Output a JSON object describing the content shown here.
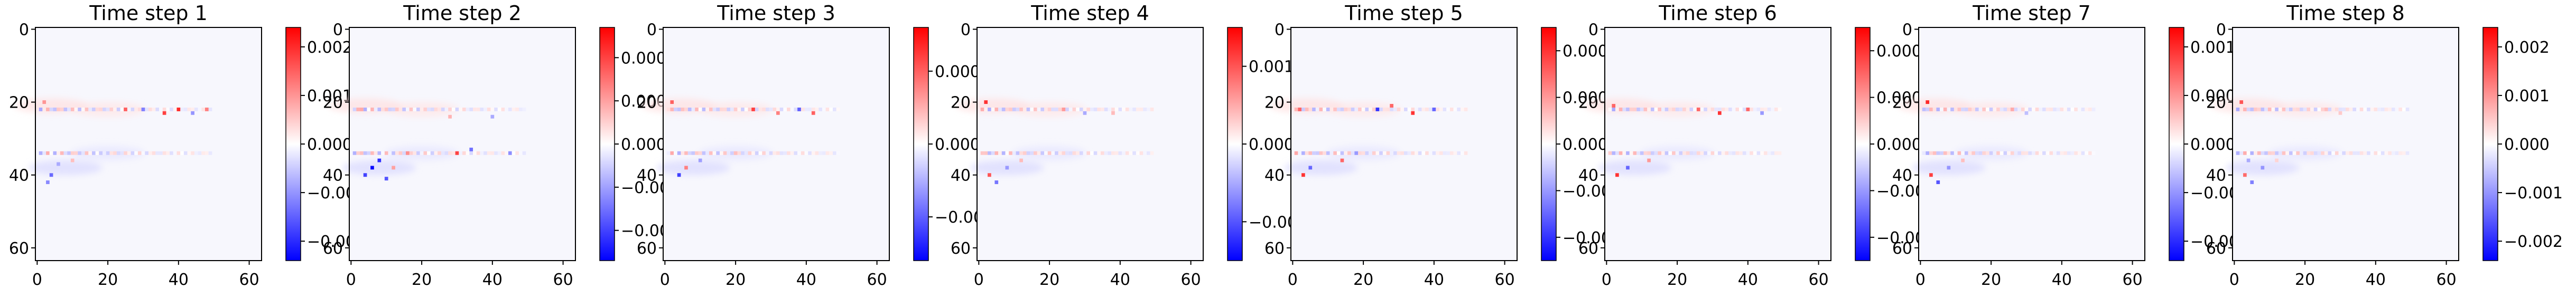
{
  "chart_data": [
    {
      "type": "heatmap",
      "title": "Time step 1",
      "xlabel": "",
      "ylabel": "",
      "xlim": [
        0,
        63
      ],
      "ylim": [
        63,
        0
      ],
      "x_ticks": [
        "0",
        "20",
        "40",
        "60"
      ],
      "y_ticks": [
        "0",
        "20",
        "40",
        "60"
      ],
      "colormap": "bwr",
      "colorbar": {
        "min": -0.0024,
        "max": 0.0024,
        "ticks": [
          0.002,
          0.001,
          0.0,
          -0.001,
          -0.002
        ],
        "tick_labels": [
          "0.002",
          "0.001",
          "0.000",
          "−0.001",
          "−0.002"
        ]
      },
      "features": [
        {
          "x": 25,
          "y": 22,
          "v": 0.0015
        },
        {
          "x": 30,
          "y": 22,
          "v": -0.0012
        },
        {
          "x": 36,
          "y": 23,
          "v": 0.0018
        },
        {
          "x": 40,
          "y": 22,
          "v": 0.002
        },
        {
          "x": 44,
          "y": 23,
          "v": -0.001
        },
        {
          "x": 48,
          "y": 22,
          "v": 0.0012
        },
        {
          "x": 2,
          "y": 20,
          "v": 0.001
        },
        {
          "x": 4,
          "y": 40,
          "v": -0.0014
        },
        {
          "x": 6,
          "y": 37,
          "v": -0.0008
        },
        {
          "x": 10,
          "y": 36,
          "v": 0.0006
        },
        {
          "x": 18,
          "y": 34,
          "v": -0.0005
        },
        {
          "x": 3,
          "y": 42,
          "v": -0.0011
        }
      ]
    },
    {
      "type": "heatmap",
      "title": "Time step 2",
      "xlabel": "",
      "ylabel": "",
      "xlim": [
        0,
        63
      ],
      "ylim": [
        63,
        0
      ],
      "x_ticks": [
        "0",
        "20",
        "40",
        "60"
      ],
      "y_ticks": [
        "0",
        "20",
        "40",
        "60"
      ],
      "colormap": "bwr",
      "colorbar": {
        "min": -0.00027,
        "max": 0.00027,
        "ticks": [
          0.0002,
          0.0001,
          0.0,
          -0.0001,
          -0.0002
        ],
        "tick_labels": [
          "0.0002",
          "0.0001",
          "0.0000",
          "−0.0001",
          "−0.0002"
        ]
      },
      "features": [
        {
          "x": 6,
          "y": 38,
          "v": -0.00026
        },
        {
          "x": 8,
          "y": 36,
          "v": -0.00022
        },
        {
          "x": 4,
          "y": 40,
          "v": -0.0002
        },
        {
          "x": 10,
          "y": 41,
          "v": -0.00018
        },
        {
          "x": 12,
          "y": 38,
          "v": 0.0001
        },
        {
          "x": 30,
          "y": 34,
          "v": 0.0002
        },
        {
          "x": 34,
          "y": 33,
          "v": -0.00015
        },
        {
          "x": 45,
          "y": 34,
          "v": -0.00012
        },
        {
          "x": 28,
          "y": 24,
          "v": 8e-05
        },
        {
          "x": 3,
          "y": 22,
          "v": 9e-05
        },
        {
          "x": 16,
          "y": 34,
          "v": 0.00012
        },
        {
          "x": 40,
          "y": 24,
          "v": -9e-05
        }
      ]
    },
    {
      "type": "heatmap",
      "title": "Time step 3",
      "xlabel": "",
      "ylabel": "",
      "xlim": [
        0,
        63
      ],
      "ylim": [
        63,
        0
      ],
      "x_ticks": [
        "0",
        "20",
        "40",
        "60"
      ],
      "y_ticks": [
        "0",
        "20",
        "40",
        "60"
      ],
      "colormap": "bwr",
      "colorbar": {
        "min": -0.0008,
        "max": 0.0008,
        "ticks": [
          0.0005,
          0.0,
          -0.0005
        ],
        "tick_labels": [
          "0.0005",
          "0.0000",
          "−0.0005"
        ]
      },
      "features": [
        {
          "x": 25,
          "y": 22,
          "v": 0.0006
        },
        {
          "x": 32,
          "y": 23,
          "v": 0.0004
        },
        {
          "x": 38,
          "y": 22,
          "v": -0.0005
        },
        {
          "x": 42,
          "y": 23,
          "v": 0.0005
        },
        {
          "x": 4,
          "y": 40,
          "v": -0.0006
        },
        {
          "x": 6,
          "y": 38,
          "v": 0.0004
        },
        {
          "x": 2,
          "y": 20,
          "v": 0.0005
        },
        {
          "x": 10,
          "y": 36,
          "v": -0.0003
        },
        {
          "x": 20,
          "y": 34,
          "v": 0.0002
        }
      ]
    },
    {
      "type": "heatmap",
      "title": "Time step 4",
      "xlabel": "",
      "ylabel": "",
      "xlim": [
        0,
        63
      ],
      "ylim": [
        63,
        0
      ],
      "x_ticks": [
        "0",
        "20",
        "40",
        "60"
      ],
      "y_ticks": [
        "0",
        "20",
        "40",
        "60"
      ],
      "colormap": "bwr",
      "colorbar": {
        "min": -0.0015,
        "max": 0.0015,
        "ticks": [
          0.001,
          0.0,
          -0.001
        ],
        "tick_labels": [
          "0.001",
          "0.000",
          "−0.001"
        ]
      },
      "features": [
        {
          "x": 2,
          "y": 20,
          "v": 0.0012
        },
        {
          "x": 3,
          "y": 40,
          "v": 0.001
        },
        {
          "x": 5,
          "y": 42,
          "v": -0.0008
        },
        {
          "x": 8,
          "y": 38,
          "v": -0.0006
        },
        {
          "x": 24,
          "y": 22,
          "v": 0.0006
        },
        {
          "x": 30,
          "y": 23,
          "v": -0.0005
        },
        {
          "x": 12,
          "y": 36,
          "v": 0.0004
        },
        {
          "x": 38,
          "y": 23,
          "v": 0.0004
        }
      ]
    },
    {
      "type": "heatmap",
      "title": "Time step 5",
      "xlabel": "",
      "ylabel": "",
      "xlim": [
        0,
        63
      ],
      "ylim": [
        63,
        0
      ],
      "x_ticks": [
        "0",
        "20",
        "40",
        "60"
      ],
      "y_ticks": [
        "0",
        "20",
        "40",
        "60"
      ],
      "colormap": "bwr",
      "colorbar": {
        "min": -0.0005,
        "max": 0.0005,
        "ticks": [
          0.0004,
          0.0002,
          0.0,
          -0.0002,
          -0.0004
        ],
        "tick_labels": [
          "0.0004",
          "0.0002",
          "0.0000",
          "−0.0002",
          "−0.0004"
        ]
      },
      "features": [
        {
          "x": 24,
          "y": 22,
          "v": -0.0004
        },
        {
          "x": 28,
          "y": 21,
          "v": 0.0003
        },
        {
          "x": 34,
          "y": 23,
          "v": 0.0004
        },
        {
          "x": 40,
          "y": 22,
          "v": -0.0003
        },
        {
          "x": 3,
          "y": 40,
          "v": 0.0004
        },
        {
          "x": 5,
          "y": 38,
          "v": -0.0003
        },
        {
          "x": 14,
          "y": 36,
          "v": 0.0003
        },
        {
          "x": 18,
          "y": 34,
          "v": -0.0002
        },
        {
          "x": 2,
          "y": 22,
          "v": 0.0003
        }
      ]
    },
    {
      "type": "heatmap",
      "title": "Time step 6",
      "xlabel": "",
      "ylabel": "",
      "xlim": [
        0,
        63
      ],
      "ylim": [
        63,
        0
      ],
      "x_ticks": [
        "0",
        "20",
        "40",
        "60"
      ],
      "y_ticks": [
        "0",
        "20",
        "40",
        "60"
      ],
      "colormap": "bwr",
      "colorbar": {
        "min": -0.0005,
        "max": 0.0005,
        "ticks": [
          0.0004,
          0.0002,
          0.0,
          -0.0002,
          -0.0004
        ],
        "tick_labels": [
          "0.0004",
          "0.0002",
          "0.0000",
          "−0.0002",
          "−0.0004"
        ]
      },
      "features": [
        {
          "x": 26,
          "y": 22,
          "v": 0.0003
        },
        {
          "x": 32,
          "y": 23,
          "v": 0.0004
        },
        {
          "x": 40,
          "y": 22,
          "v": 0.0003
        },
        {
          "x": 44,
          "y": 23,
          "v": -0.0002
        },
        {
          "x": 3,
          "y": 40,
          "v": 0.0004
        },
        {
          "x": 6,
          "y": 38,
          "v": -0.0003
        },
        {
          "x": 2,
          "y": 21,
          "v": 0.0003
        },
        {
          "x": 12,
          "y": 36,
          "v": 0.0002
        }
      ]
    },
    {
      "type": "heatmap",
      "title": "Time step 7",
      "xlabel": "",
      "ylabel": "",
      "xlim": [
        0,
        63
      ],
      "ylim": [
        63,
        0
      ],
      "x_ticks": [
        "0",
        "20",
        "40",
        "60"
      ],
      "y_ticks": [
        "0",
        "20",
        "40",
        "60"
      ],
      "colormap": "bwr",
      "colorbar": {
        "min": -0.0012,
        "max": 0.0012,
        "ticks": [
          0.001,
          0.0005,
          0.0,
          -0.0005,
          -0.001
        ],
        "tick_labels": [
          "0.0010",
          "0.0005",
          "0.0000",
          "−0.0005",
          "−0.0010"
        ]
      },
      "features": [
        {
          "x": 2,
          "y": 20,
          "v": 0.001
        },
        {
          "x": 3,
          "y": 40,
          "v": 0.0009
        },
        {
          "x": 5,
          "y": 42,
          "v": -0.0008
        },
        {
          "x": 8,
          "y": 38,
          "v": -0.0005
        },
        {
          "x": 26,
          "y": 22,
          "v": 0.0004
        },
        {
          "x": 30,
          "y": 23,
          "v": -0.0003
        },
        {
          "x": 12,
          "y": 36,
          "v": 0.0003
        }
      ]
    },
    {
      "type": "heatmap",
      "title": "Time step 8",
      "xlabel": "",
      "ylabel": "",
      "xlim": [
        0,
        63
      ],
      "ylim": [
        63,
        0
      ],
      "x_ticks": [
        "0",
        "20",
        "40",
        "60"
      ],
      "y_ticks": [
        "0",
        "20",
        "40",
        "60"
      ],
      "colormap": "bwr",
      "colorbar": {
        "min": -0.0024,
        "max": 0.0024,
        "ticks": [
          0.002,
          0.001,
          0.0,
          -0.001,
          -0.002
        ],
        "tick_labels": [
          "0.002",
          "0.001",
          "0.000",
          "−0.001",
          "−0.002"
        ]
      },
      "features": [
        {
          "x": 2,
          "y": 20,
          "v": 0.0016
        },
        {
          "x": 3,
          "y": 40,
          "v": 0.0014
        },
        {
          "x": 5,
          "y": 42,
          "v": -0.0012
        },
        {
          "x": 8,
          "y": 38,
          "v": -0.001
        },
        {
          "x": 26,
          "y": 22,
          "v": 0.0006
        },
        {
          "x": 30,
          "y": 23,
          "v": 0.0005
        },
        {
          "x": 12,
          "y": 36,
          "v": 0.0004
        },
        {
          "x": 4,
          "y": 36,
          "v": -0.0008
        }
      ]
    }
  ]
}
